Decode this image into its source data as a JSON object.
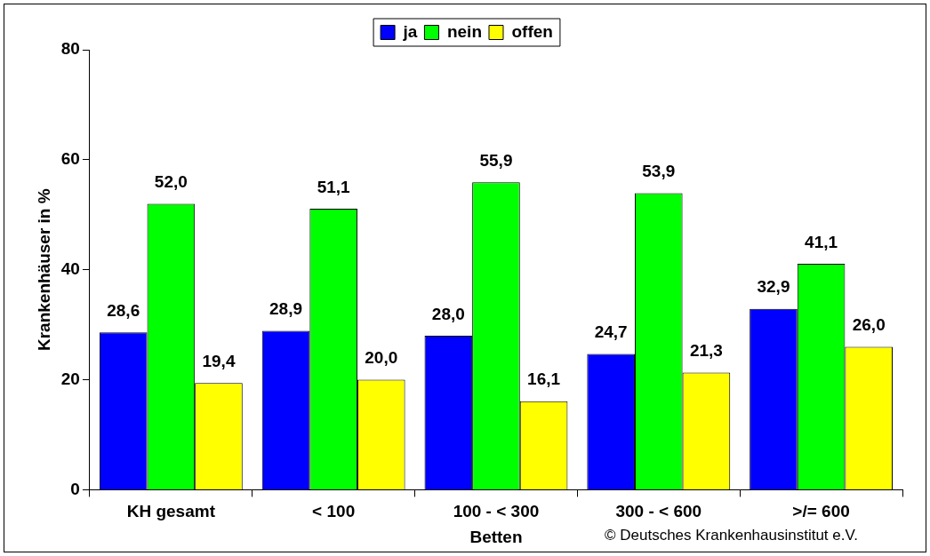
{
  "chart_data": {
    "type": "bar",
    "categories": [
      "KH gesamt",
      "< 100",
      "100 - < 300",
      "300 - < 600",
      ">/= 600"
    ],
    "series": [
      {
        "name": "ja",
        "color": "#0000ff",
        "values": [
          28.6,
          28.9,
          28.0,
          24.7,
          32.9
        ],
        "value_labels": [
          "28,6",
          "28,9",
          "28,0",
          "24,7",
          "32,9"
        ]
      },
      {
        "name": "nein",
        "color": "#00ff00",
        "values": [
          52.0,
          51.1,
          55.9,
          53.9,
          41.1
        ],
        "value_labels": [
          "52,0",
          "51,1",
          "55,9",
          "53,9",
          "41,1"
        ]
      },
      {
        "name": "offen",
        "color": "#ffff00",
        "values": [
          19.4,
          20.0,
          16.1,
          21.3,
          26.0
        ],
        "value_labels": [
          "19,4",
          "20,0",
          "16,1",
          "21,3",
          "26,0"
        ]
      }
    ],
    "xlabel": "Betten",
    "ylabel": "Krankenhäuser in %",
    "ylim": [
      0,
      80
    ],
    "yticks": [
      0,
      20,
      40,
      60,
      80
    ],
    "legend": "top",
    "annotations": [
      "© Deutsches Krankenhausinstitut e.V."
    ]
  }
}
